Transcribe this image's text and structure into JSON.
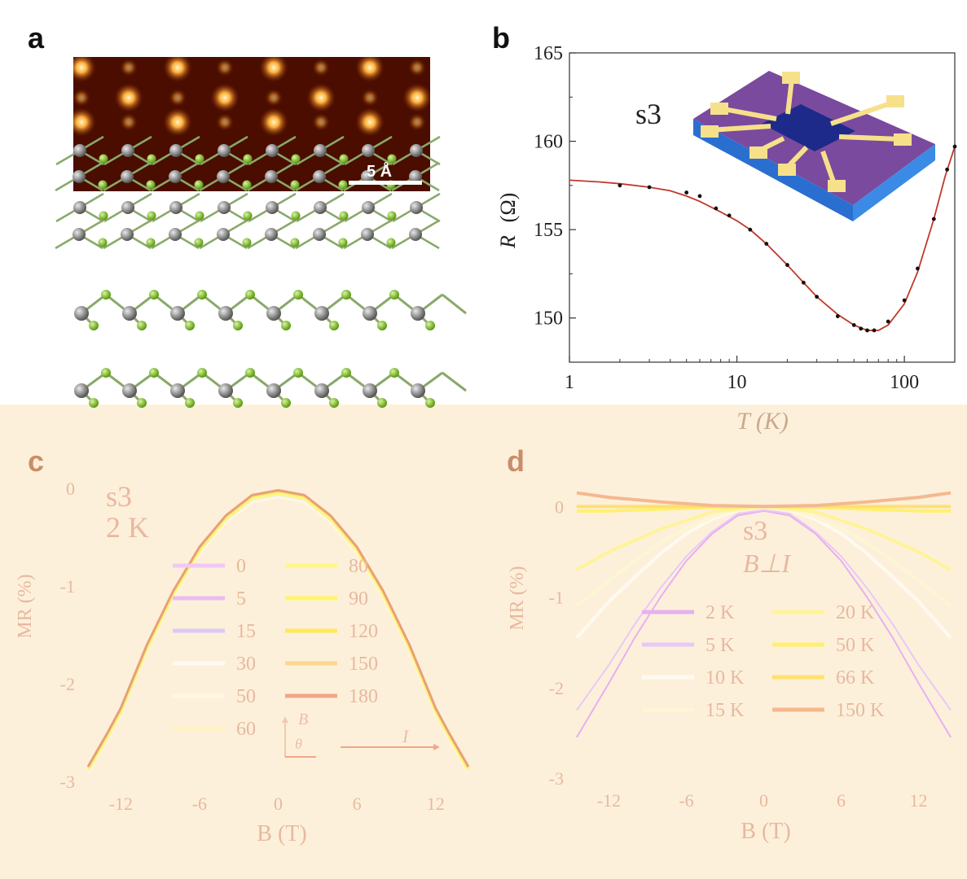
{
  "panels": {
    "a": {
      "letter": "a",
      "scalebar": "5 Å"
    },
    "b": {
      "letter": "b"
    },
    "c": {
      "letter": "c"
    },
    "d": {
      "letter": "d"
    }
  },
  "chart_data": [
    {
      "panel": "b",
      "type": "scatter",
      "xscale": "log",
      "xlim": [
        1,
        200
      ],
      "ylim": [
        147.5,
        165
      ],
      "xticks": [
        "1",
        "10",
        "100"
      ],
      "yticks": [
        "150",
        "155",
        "160",
        "165"
      ],
      "xlabel": "T (K)",
      "ylabel_var": "R",
      "ylabel_unit": "(Ω)",
      "annotation": "s3",
      "colors": {
        "points": "#111111",
        "fit": "#c0392b"
      },
      "series": [
        {
          "kind": "points",
          "x": [
            2,
            3,
            5,
            6,
            7.5,
            9,
            12,
            15,
            20,
            25,
            30,
            40,
            50,
            55,
            60,
            66,
            80,
            100,
            120,
            150,
            180,
            200
          ],
          "y": [
            157.5,
            157.4,
            157.1,
            156.9,
            156.2,
            155.8,
            155.0,
            154.2,
            153.0,
            152.0,
            151.2,
            150.1,
            149.6,
            149.4,
            149.3,
            149.3,
            149.8,
            151.0,
            152.8,
            155.6,
            158.4,
            159.7
          ]
        },
        {
          "kind": "fit",
          "x": [
            1,
            1.5,
            2,
            3,
            4,
            5,
            6,
            8,
            10,
            12,
            15,
            20,
            25,
            30,
            40,
            50,
            60,
            70,
            80,
            100,
            120,
            150,
            175,
            200
          ],
          "y": [
            157.8,
            157.7,
            157.6,
            157.4,
            157.2,
            156.9,
            156.6,
            156.0,
            155.5,
            155.0,
            154.2,
            153.0,
            152.0,
            151.2,
            150.2,
            149.6,
            149.3,
            149.3,
            149.6,
            150.8,
            152.6,
            155.6,
            158.0,
            159.7
          ]
        }
      ]
    },
    {
      "panel": "c",
      "type": "line",
      "xlim": [
        -15,
        15
      ],
      "ylim": [
        -3,
        0
      ],
      "xticks": [
        "-12",
        "-6",
        "0",
        "6",
        "12"
      ],
      "yticks": [
        "0",
        "-1",
        "-2",
        "-3"
      ],
      "xlabel": "B (T)",
      "ylabel": "MR (%)",
      "annotation": [
        "s3",
        "2 K"
      ],
      "legend_left": [
        "0",
        "5",
        "15",
        "30",
        "50",
        "60"
      ],
      "legend_right": [
        "80",
        "90",
        "120",
        "150",
        "180"
      ],
      "inset_labels": {
        "b": "B",
        "theta": "θ",
        "i": "I"
      },
      "colors": {
        "main": "#e8a07a",
        "theta0": "#f0c8f4",
        "theta5": "#e8bdf2",
        "theta15": "#dcc8f8",
        "theta30": "#fffaf0",
        "theta50": "#fff6e4",
        "theta60": "#fff3c4",
        "theta80": "#fff68a",
        "theta90": "#fff66a",
        "theta120": "#ffe95a",
        "theta150": "#fcd890",
        "theta180": "#f2a688",
        "text": "#e8b8a0"
      },
      "series": [
        {
          "name": "main",
          "x": [
            -14.5,
            -13,
            -12,
            -10,
            -8,
            -6,
            -4,
            -2,
            0,
            2,
            4,
            6,
            8,
            10,
            12,
            13,
            14.5
          ],
          "y": [
            -2.85,
            -2.5,
            -2.25,
            -1.6,
            -1.05,
            -0.6,
            -0.28,
            -0.07,
            -0.02,
            -0.07,
            -0.28,
            -0.6,
            -1.05,
            -1.6,
            -2.25,
            -2.5,
            -2.85
          ]
        }
      ]
    },
    {
      "panel": "d",
      "type": "line",
      "xlim": [
        -15,
        15
      ],
      "ylim": [
        -3,
        0.2
      ],
      "xticks": [
        "-12",
        "-6",
        "0",
        "6",
        "12"
      ],
      "yticks": [
        "0",
        "-1",
        "-2",
        "-3"
      ],
      "xlabel": "B (T)",
      "ylabel": "MR (%)",
      "annotation": [
        "s3",
        "B⊥I"
      ],
      "legend_left": [
        "2 K",
        "5 K",
        "10 K",
        "15 K"
      ],
      "legend_right": [
        "20 K",
        "50 K",
        "66 K",
        "150 K"
      ],
      "colors": {
        "2 K": "#e8b0f0",
        "5 K": "#e8c8f8",
        "10 K": "#fffaf0",
        "15 K": "#fdf6d4",
        "20 K": "#fff39a",
        "50 K": "#fff070",
        "66 K": "#ffe070",
        "150 K": "#f5b890",
        "text": "#e8b8a0"
      },
      "series": [
        {
          "name": "2 K",
          "x": [
            -14.5,
            -12,
            -10,
            -8,
            -6,
            -4,
            -2,
            0,
            2,
            4,
            6,
            8,
            10,
            12,
            14.5
          ],
          "y": [
            -2.55,
            -1.95,
            -1.45,
            -1.0,
            -0.6,
            -0.3,
            -0.1,
            -0.05,
            -0.1,
            -0.3,
            -0.6,
            -1.0,
            -1.45,
            -1.95,
            -2.55
          ]
        },
        {
          "name": "5 K",
          "x": [
            -14.5,
            -12,
            -10,
            -8,
            -6,
            -4,
            -2,
            0,
            2,
            4,
            6,
            8,
            10,
            12,
            14.5
          ],
          "y": [
            -2.25,
            -1.75,
            -1.3,
            -0.9,
            -0.55,
            -0.28,
            -0.08,
            -0.04,
            -0.08,
            -0.28,
            -0.55,
            -0.9,
            -1.3,
            -1.75,
            -2.25
          ]
        },
        {
          "name": "10 K",
          "x": [
            -14.5,
            -12,
            -10,
            -8,
            -6,
            -4,
            -2,
            0,
            2,
            4,
            6,
            8,
            10,
            12,
            14.5
          ],
          "y": [
            -1.45,
            -1.05,
            -0.78,
            -0.52,
            -0.3,
            -0.14,
            -0.04,
            0.0,
            -0.04,
            -0.14,
            -0.3,
            -0.52,
            -0.78,
            -1.05,
            -1.45
          ]
        },
        {
          "name": "15 K",
          "x": [
            -14.5,
            -12,
            -10,
            -8,
            -6,
            -4,
            -2,
            0,
            2,
            4,
            6,
            8,
            10,
            12,
            14.5
          ],
          "y": [
            -1.1,
            -0.82,
            -0.6,
            -0.4,
            -0.24,
            -0.12,
            -0.03,
            0.0,
            -0.03,
            -0.12,
            -0.24,
            -0.4,
            -0.6,
            -0.82,
            -1.1
          ]
        },
        {
          "name": "20 K",
          "x": [
            -14.5,
            -12,
            -8,
            -4,
            0,
            4,
            8,
            12,
            14.5
          ],
          "y": [
            -0.7,
            -0.5,
            -0.25,
            -0.06,
            0.0,
            -0.06,
            -0.25,
            -0.5,
            -0.7
          ]
        },
        {
          "name": "50 K",
          "x": [
            -14.5,
            -12,
            -8,
            -4,
            0,
            4,
            8,
            12,
            14.5
          ],
          "y": [
            -0.05,
            -0.05,
            -0.03,
            -0.01,
            0.0,
            -0.01,
            -0.03,
            -0.05,
            -0.05
          ]
        },
        {
          "name": "66 K",
          "x": [
            -14.5,
            -12,
            -8,
            -4,
            0,
            4,
            8,
            12,
            14.5
          ],
          "y": [
            0.0,
            0.0,
            0.0,
            0.0,
            0.0,
            0.0,
            0.0,
            0.0,
            0.0
          ]
        },
        {
          "name": "150 K",
          "x": [
            -14.5,
            -12,
            -8,
            -4,
            0,
            4,
            8,
            12,
            14.5
          ],
          "y": [
            0.15,
            0.1,
            0.05,
            0.01,
            0.0,
            0.01,
            0.05,
            0.1,
            0.15
          ]
        }
      ]
    }
  ]
}
